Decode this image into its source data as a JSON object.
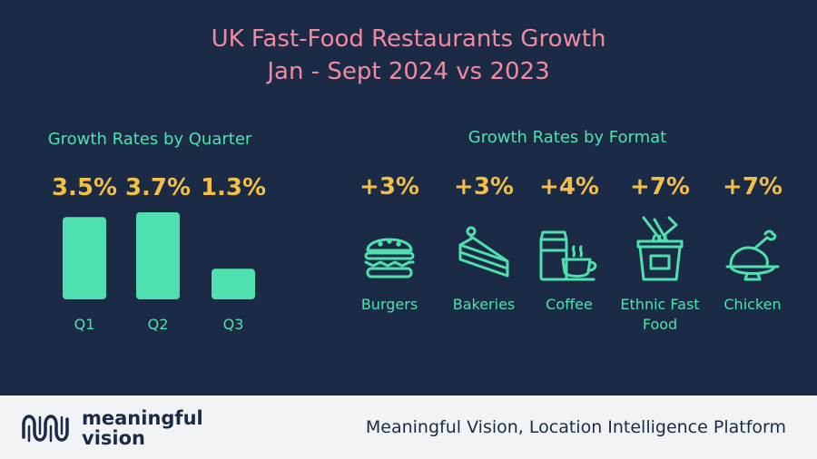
{
  "title": {
    "line1": "UK Fast-Food Restaurants Growth",
    "line2": "Jan - Sept 2024 vs 2023"
  },
  "chart_data": [
    {
      "type": "bar",
      "title": "Growth Rates by Quarter",
      "categories": [
        "Q1",
        "Q2",
        "Q3"
      ],
      "values": [
        3.5,
        3.7,
        1.3
      ],
      "value_labels": [
        "3.5%",
        "3.7%",
        "1.3%"
      ],
      "unit": "%",
      "bar_color": "#4fe0b0",
      "label_color": "#f3bf47",
      "grid": false
    },
    {
      "type": "table",
      "title": "Growth Rates by Format",
      "categories": [
        "Burgers",
        "Bakeries",
        "Coffee",
        "Ethnic Fast Food",
        "Chicken"
      ],
      "values": [
        3,
        3,
        4,
        7,
        7
      ],
      "value_labels": [
        "+3%",
        "+3%",
        "+4%",
        "+7%",
        "+7%"
      ],
      "icons": [
        "burger-icon",
        "cake-slice-icon",
        "coffee-cup-icon",
        "noodle-box-icon",
        "roast-chicken-icon"
      ]
    }
  ],
  "formats": [
    {
      "value": "+3%",
      "label": "Burgers",
      "icon": "burger-icon"
    },
    {
      "value": "+3%",
      "label": "Bakeries",
      "icon": "cake-slice-icon"
    },
    {
      "value": "+4%",
      "label": "Coffee",
      "icon": "coffee-cup-icon"
    },
    {
      "value": "+7%",
      "label": "Ethnic Fast Food",
      "icon": "noodle-box-icon"
    },
    {
      "value": "+7%",
      "label": "Chicken",
      "icon": "roast-chicken-icon"
    }
  ],
  "footer": {
    "logo_line1": "meaningful",
    "logo_line2": "vision",
    "tagline": "Meaningful Vision, Location Intelligence Platform"
  },
  "colors": {
    "background": "#1b2b45",
    "title": "#f08aa2",
    "accent": "#4fe0b0",
    "value": "#f3bf47",
    "footer_bg": "#f2f3f5",
    "footer_text": "#1b2b45"
  }
}
